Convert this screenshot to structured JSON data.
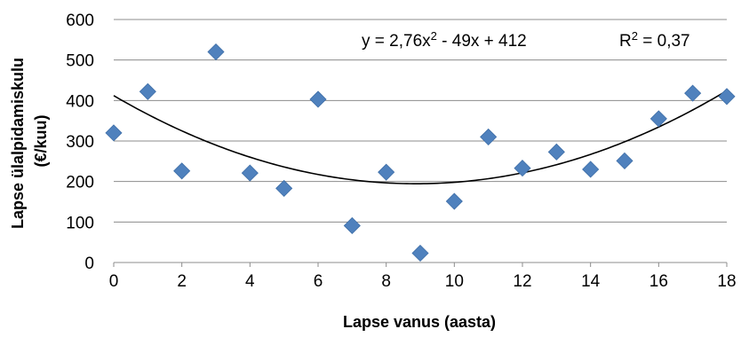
{
  "chart_data": {
    "type": "scatter",
    "xlabel": "Lapse vanus (aasta)",
    "ylabel_lines": [
      "Lapse ülalpidamiskulu",
      "(€/kuu)"
    ],
    "xlim": [
      0,
      18
    ],
    "ylim": [
      0,
      600
    ],
    "x_ticks": [
      "0",
      "2",
      "4",
      "6",
      "8",
      "10",
      "12",
      "14",
      "16",
      "18"
    ],
    "y_ticks": [
      "0",
      "100",
      "200",
      "300",
      "400",
      "500",
      "600"
    ],
    "grid": "horizontal",
    "legend": "none",
    "marker_color": "#4f81bd",
    "trend_color": "#000000",
    "points": [
      {
        "x": 0,
        "y": 320
      },
      {
        "x": 1,
        "y": 422
      },
      {
        "x": 2,
        "y": 226
      },
      {
        "x": 3,
        "y": 520
      },
      {
        "x": 4,
        "y": 221
      },
      {
        "x": 5,
        "y": 183
      },
      {
        "x": 6,
        "y": 403
      },
      {
        "x": 7,
        "y": 91
      },
      {
        "x": 8,
        "y": 223
      },
      {
        "x": 9,
        "y": 23
      },
      {
        "x": 10,
        "y": 151
      },
      {
        "x": 11,
        "y": 310
      },
      {
        "x": 12,
        "y": 233
      },
      {
        "x": 13,
        "y": 273
      },
      {
        "x": 14,
        "y": 230
      },
      {
        "x": 15,
        "y": 251
      },
      {
        "x": 16,
        "y": 355
      },
      {
        "x": 17,
        "y": 418
      },
      {
        "x": 18,
        "y": 410
      }
    ],
    "trendline": {
      "type": "polynomial",
      "coefficients": {
        "a": 2.76,
        "b": -49,
        "c": 412
      },
      "equation_base": "y = 2,76x",
      "equation_sup": "2",
      "equation_rest": " - 49x + 412",
      "r2_base": "R",
      "r2_sup": "2",
      "r2_rest": " = 0,37"
    }
  }
}
